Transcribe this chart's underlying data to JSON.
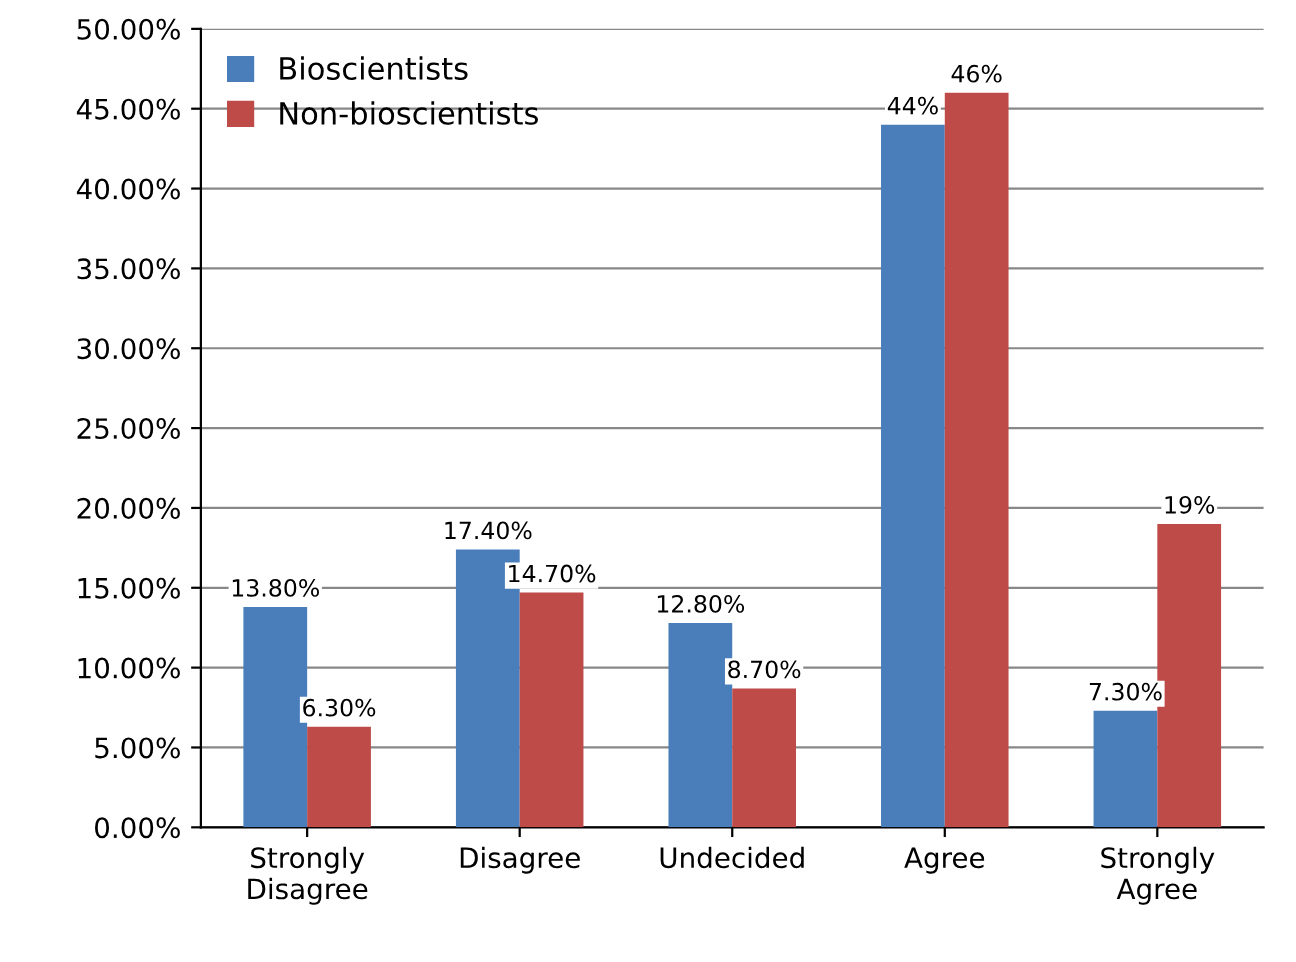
{
  "chart_data": {
    "type": "bar",
    "categories": [
      "Strongly\nDisagree",
      "Disagree",
      "Undecided",
      "Agree",
      "Strongly\nAgree"
    ],
    "series": [
      {
        "name": "Bioscientists",
        "color": "#4a7ebb",
        "values": [
          13.8,
          17.4,
          12.8,
          44,
          7.3
        ],
        "value_labels": [
          "13.80%",
          "17.40%",
          "12.80%",
          "44%",
          "7.30%"
        ]
      },
      {
        "name": "Non-bioscientists",
        "color": "#be4b48",
        "values": [
          6.3,
          14.7,
          8.7,
          46,
          19
        ],
        "value_labels": [
          "6.30%",
          "14.70%",
          "8.70%",
          "46%",
          "19%"
        ]
      }
    ],
    "ylim": [
      0,
      50
    ],
    "yticks": [
      {
        "value": 0,
        "label": "0.00%"
      },
      {
        "value": 5,
        "label": "5.00%"
      },
      {
        "value": 10,
        "label": "10.00%"
      },
      {
        "value": 15,
        "label": "15.00%"
      },
      {
        "value": 20,
        "label": "20.00%"
      },
      {
        "value": 25,
        "label": "25.00%"
      },
      {
        "value": 30,
        "label": "30.00%"
      },
      {
        "value": 35,
        "label": "35.00%"
      },
      {
        "value": 40,
        "label": "40.00%"
      },
      {
        "value": 45,
        "label": "45.00%"
      },
      {
        "value": 50,
        "label": "50.00%"
      }
    ],
    "grid": "y",
    "legend": "top left"
  }
}
